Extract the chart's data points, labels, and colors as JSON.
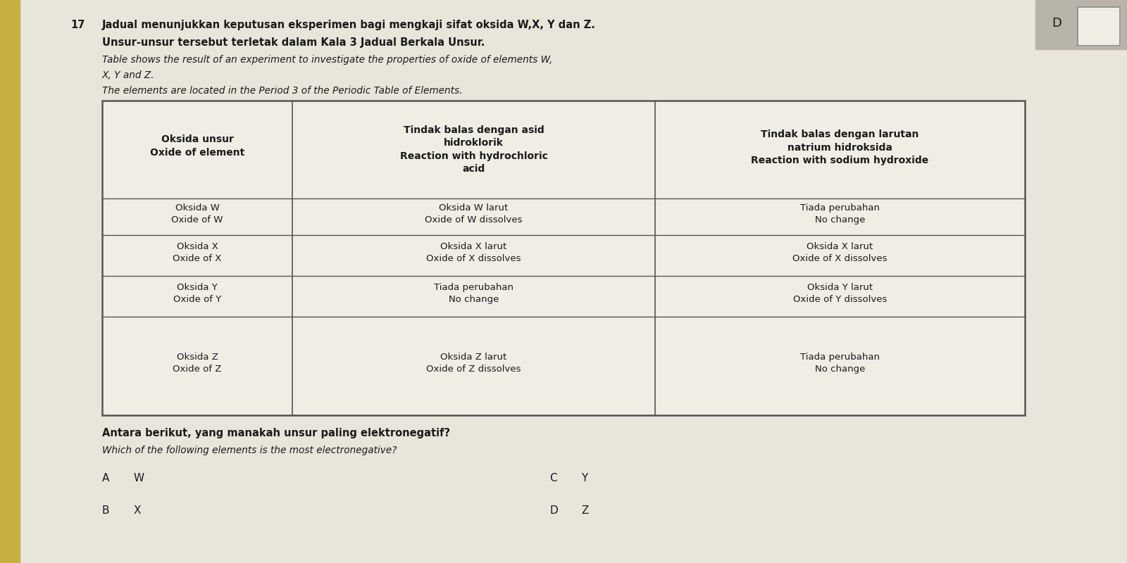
{
  "question_number": "17",
  "q_line1_bold": "Jadual menunjukkan keputusan eksperimen bagi mengkaji sifat oksida W,X, Y dan Z.",
  "q_line2_bold": "Unsur-unsur tersebut terletak dalam Kala 3 Jadual Berkala Unsur.",
  "q_line3_italic": "Table shows the result of an experiment to investigate the properties of oxide of elements W,",
  "q_line4_italic": "X, Y and Z.",
  "q_line5_italic": "The elements are located in the Period 3 of the Periodic Table of Elements.",
  "col1_h1": "Oksida unsur",
  "col1_h2": "Oxide of element",
  "col2_h1": "Tindak balas dengan asid",
  "col2_h2": "hidroklorik",
  "col2_h3": "Reaction with hydrochloric",
  "col2_h4": "acid",
  "col3_h1": "Tindak balas dengan larutan",
  "col3_h2": "natrium hidroksida",
  "col3_h3": "Reaction with sodium hydroxide",
  "rows": [
    {
      "c1a": "Oksida W",
      "c1b": "Oxide of W",
      "c2a": "Oksida W larut",
      "c2b": "Oxide of W dissolves",
      "c3a": "Tiada perubahan",
      "c3b": "No change"
    },
    {
      "c1a": "Oksida X",
      "c1b": "Oxide of X",
      "c2a": "Oksida X larut",
      "c2b": "Oxide of X dissolves",
      "c3a": "Oksida X larut",
      "c3b": "Oxide of X dissolves"
    },
    {
      "c1a": "Oksida Y",
      "c1b": "Oxide of Y",
      "c2a": "Tiada perubahan",
      "c2b": "No change",
      "c3a": "Oksida Y larut",
      "c3b": "Oxide of Y dissolves"
    },
    {
      "c1a": "Oksida Z",
      "c1b": "Oxide of Z",
      "c2a": "Oksida Z larut",
      "c2b": "Oxide of Z dissolves",
      "c3a": "Tiada perubahan",
      "c3b": "No change"
    }
  ],
  "q2_bold": "Antara berikut, yang manakah unsur paling elektronegatif?",
  "q2_italic": "Which of the following elements is the most electronegative?",
  "ans_A": "W",
  "ans_B": "X",
  "ans_C": "Y",
  "ans_D": "Z",
  "corner_label": "D",
  "bg_color": "#d9d5c8",
  "page_color": "#e8e5db",
  "table_bg": "#f0ede5",
  "border_color": "#555555",
  "text_color": "#1a1a1a",
  "yellow_strip": "#c8b040"
}
